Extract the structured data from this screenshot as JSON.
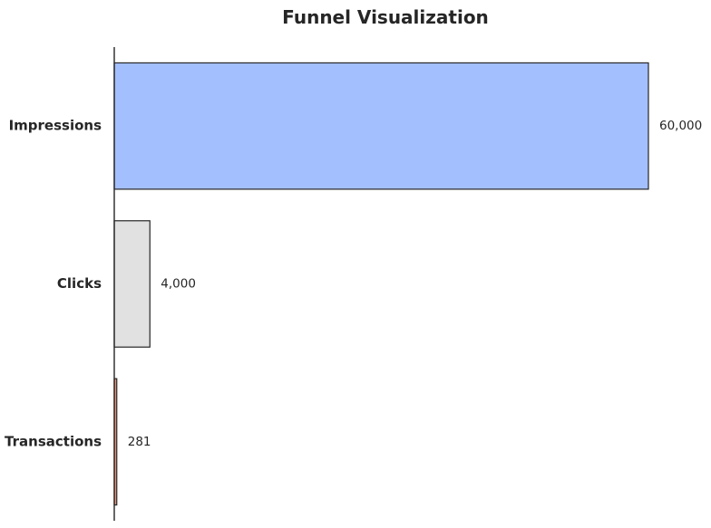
{
  "chart_data": {
    "type": "bar",
    "orientation": "horizontal",
    "title": "Funnel Visualization",
    "xlabel": "",
    "ylabel": "",
    "categories": [
      "Impressions",
      "Clicks",
      "Transactions"
    ],
    "values": [
      60000,
      4000,
      281
    ],
    "value_labels": [
      "60,000",
      "4,000",
      "281"
    ],
    "colors": [
      "#a4bffe",
      "#e1e1e1",
      "#e49477"
    ],
    "xlim": [
      0,
      60000
    ],
    "grid": false,
    "legend": "none"
  }
}
